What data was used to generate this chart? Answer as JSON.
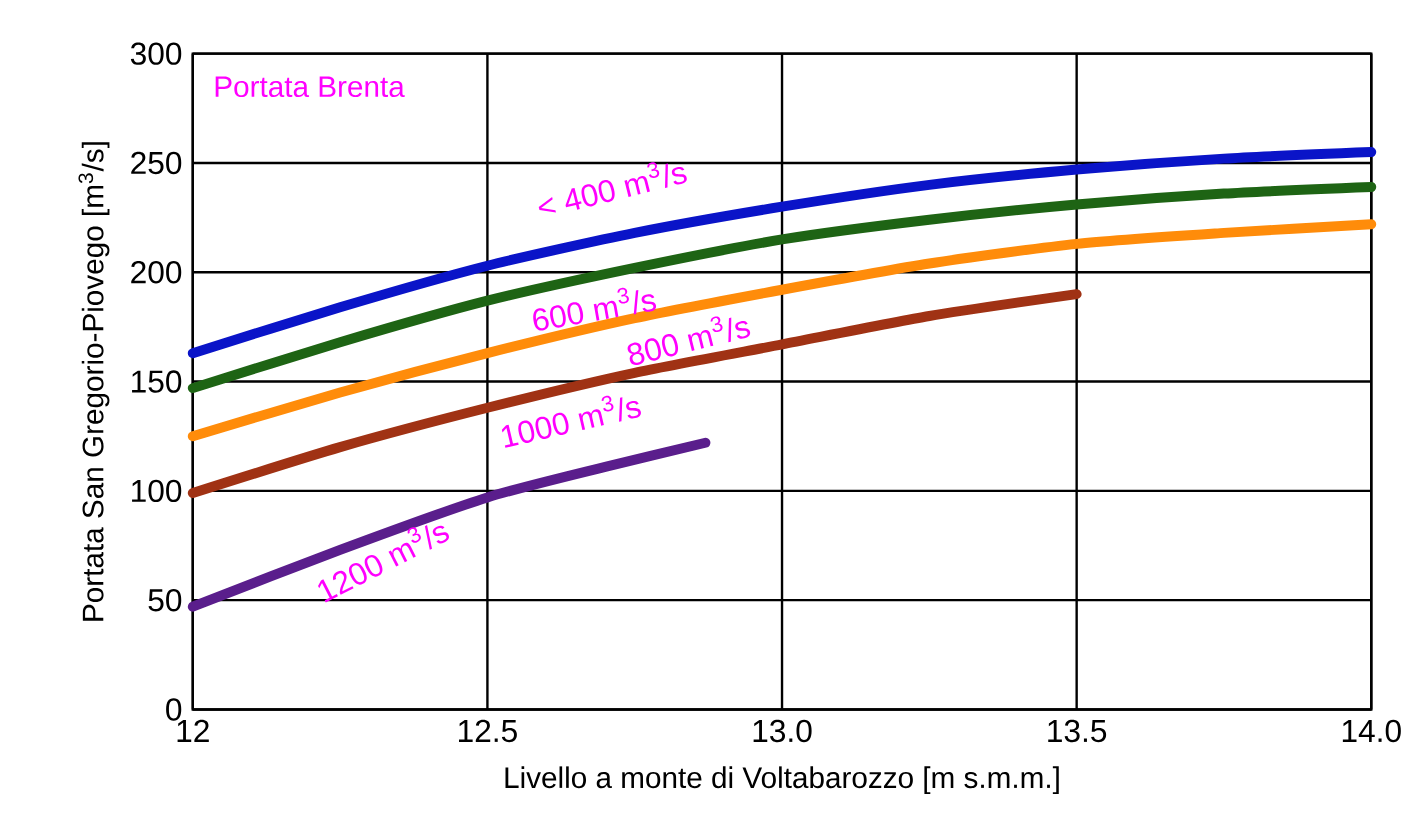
{
  "chart_data": {
    "type": "line",
    "xlabel": "Livello a monte di Voltabarozzo [m s.m.m.]",
    "ylabel": "Portata San Gregorio-Piovego [m$^{3}$/s]",
    "xlim": [
      12,
      14
    ],
    "ylim": [
      0,
      300
    ],
    "xticks": [
      12,
      12.5,
      {
        "value": 13,
        "label": "13.0"
      },
      13.5,
      {
        "value": 14,
        "label": "14.0"
      }
    ],
    "yticks": [
      0,
      50,
      100,
      150,
      200,
      250,
      300
    ],
    "grid": true,
    "marker": "none",
    "line_style": "solid",
    "series": [
      {
        "name": "< 400 m$^{3}$/s",
        "color": "#0a14c8",
        "x": [
          12,
          12.25,
          12.5,
          12.75,
          13,
          13.25,
          13.5,
          13.75,
          14
        ],
        "values": [
          163,
          184,
          203,
          218,
          230,
          240,
          247,
          252,
          255
        ]
      },
      {
        "name": "600 m$^{3}$/s",
        "color": "#1e6414",
        "x": [
          12,
          12.25,
          12.5,
          12.75,
          13,
          13.25,
          13.5,
          13.75,
          14
        ],
        "values": [
          147,
          168,
          187,
          202,
          215,
          224,
          231,
          236,
          239
        ]
      },
      {
        "name": "800 m$^{3}$/s",
        "color": "#ff8c0a",
        "x": [
          12,
          12.25,
          12.5,
          12.75,
          13,
          13.25,
          13.5,
          13.75,
          14
        ],
        "values": [
          125,
          145,
          163,
          179,
          192,
          204,
          213,
          218,
          222
        ]
      },
      {
        "name": "1000 m$^{3}$/s",
        "color": "#a03214",
        "x": [
          12,
          12.25,
          12.5,
          12.75,
          13,
          13.25,
          13.5
        ],
        "values": [
          99,
          120,
          138,
          154,
          167,
          180,
          190
        ]
      },
      {
        "name": "1200 m$^{3}$/s",
        "color": "#5a1e8c",
        "x": [
          12,
          12.25,
          12.5,
          12.7,
          12.87
        ],
        "values": [
          47,
          73,
          97,
          111,
          122
        ]
      }
    ],
    "annotations": [
      "Portata Brenta"
    ]
  }
}
